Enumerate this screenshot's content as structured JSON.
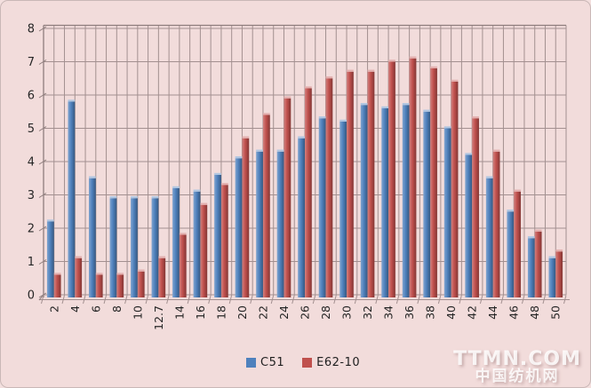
{
  "chart_data": {
    "type": "bar",
    "title": "",
    "xlabel": "",
    "ylabel": "",
    "categories": [
      "2",
      "4",
      "6",
      "8",
      "10",
      "12.7",
      "14",
      "16",
      "18",
      "20",
      "22",
      "24",
      "26",
      "28",
      "30",
      "32",
      "34",
      "36",
      "38",
      "40",
      "42",
      "44",
      "46",
      "48",
      "50"
    ],
    "series": [
      {
        "name": "C51",
        "color": "#4f81bd",
        "values": [
          2.2,
          5.8,
          3.5,
          2.9,
          2.9,
          2.9,
          3.2,
          3.1,
          3.6,
          4.1,
          4.3,
          4.3,
          4.7,
          5.3,
          5.2,
          5.7,
          5.6,
          5.7,
          5.5,
          5.0,
          4.2,
          3.5,
          2.5,
          1.7,
          1.1
        ]
      },
      {
        "name": "E62-10",
        "color": "#c0504d",
        "values": [
          0.6,
          1.1,
          0.6,
          0.6,
          0.7,
          1.1,
          1.8,
          2.7,
          3.3,
          4.7,
          5.4,
          5.9,
          6.2,
          6.5,
          6.7,
          6.7,
          7.0,
          7.1,
          6.8,
          6.4,
          5.3,
          4.3,
          3.1,
          1.9,
          1.3
        ]
      }
    ],
    "ylim": [
      0,
      8
    ],
    "yticks": [
      0,
      1,
      2,
      3,
      4,
      5,
      6,
      7,
      8
    ],
    "grid": "horizontal-and-vertical",
    "legend_position": "bottom-center",
    "background_color": "#f2dcdb",
    "gridline_color": "#a39090",
    "axis_text_color": "#262626"
  },
  "watermark": {
    "line1": "TTMN.COM",
    "line2": "中国纺机网"
  }
}
